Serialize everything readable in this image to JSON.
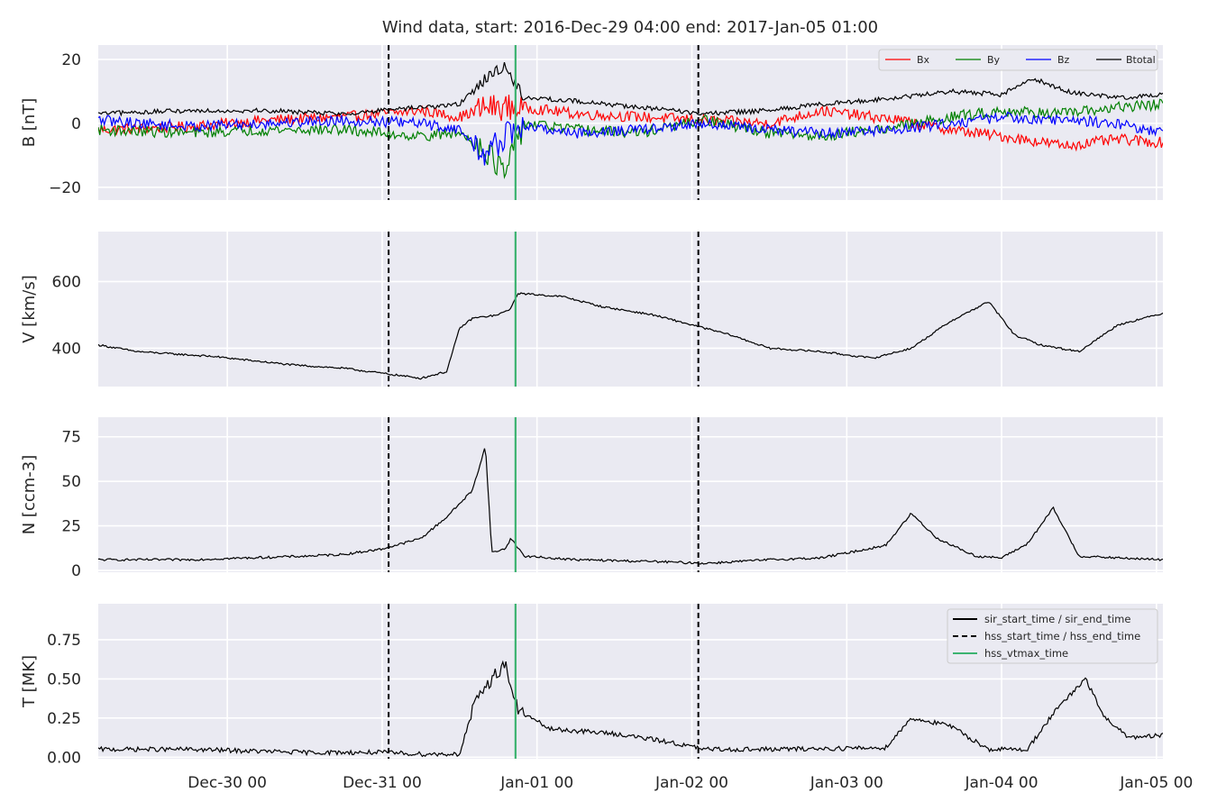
{
  "chart_data": {
    "type": "line",
    "title": "Wind data, start: 2016-Dec-29 04:00  end: 2017-Jan-05 01:00",
    "x_range": [
      "2016-12-29 04:00",
      "2017-01-05 01:00"
    ],
    "x_ticks": [
      {
        "label": "Dec-30 00",
        "t": "2016-12-30 00:00"
      },
      {
        "label": "Dec-31 00",
        "t": "2016-12-31 00:00"
      },
      {
        "label": "Jan-01 00",
        "t": "2017-01-01 00:00"
      },
      {
        "label": "Jan-02 00",
        "t": "2017-01-02 00:00"
      },
      {
        "label": "Jan-03 00",
        "t": "2017-01-03 00:00"
      },
      {
        "label": "Jan-04 00",
        "t": "2017-01-04 00:00"
      },
      {
        "label": "Jan-05 00",
        "t": "2017-01-05 00:00"
      }
    ],
    "grid": true,
    "markers": [
      {
        "name": "sir_start_time / sir_end_time",
        "style": "solid",
        "color": "#000000",
        "times": []
      },
      {
        "name": "hss_start_time / hss_end_time",
        "style": "dashed",
        "color": "#000000",
        "times": [
          "2016-12-31 01:00",
          "2017-01-02 01:00"
        ]
      },
      {
        "name": "hss_vtmax_time",
        "style": "solid",
        "color": "#3cb371",
        "times": [
          "2016-12-31 20:40"
        ]
      }
    ],
    "panels": [
      {
        "ylabel": "B [nT]",
        "ylim": [
          -24,
          24.5
        ],
        "yticks": [
          -20,
          0,
          20
        ],
        "legend": "top-right",
        "series": [
          {
            "name": "Bx",
            "color": "#ff0000",
            "points": [
              [
                "2016-12-29 04:00",
                -2
              ],
              [
                "2016-12-29 18:00",
                -1
              ],
              [
                "2016-12-30 06:00",
                1
              ],
              [
                "2016-12-30 18:00",
                2
              ],
              [
                "2016-12-31 06:00",
                4
              ],
              [
                "2016-12-31 12:00",
                2
              ],
              [
                "2016-12-31 16:00",
                5
              ],
              [
                "2016-12-31 22:00",
                5
              ],
              [
                "2017-01-01 06:00",
                3
              ],
              [
                "2017-01-01 16:00",
                2
              ],
              [
                "2017-01-02 02:00",
                1
              ],
              [
                "2017-01-02 12:00",
                0
              ],
              [
                "2017-01-02 20:00",
                4
              ],
              [
                "2017-01-03 08:00",
                1
              ],
              [
                "2017-01-03 16:00",
                -2
              ],
              [
                "2017-01-04 00:00",
                -4
              ],
              [
                "2017-01-04 10:00",
                -7
              ],
              [
                "2017-01-04 18:00",
                -5
              ],
              [
                "2017-01-05 01:00",
                -6
              ]
            ]
          },
          {
            "name": "By",
            "color": "#008000",
            "points": [
              [
                "2016-12-29 04:00",
                -2
              ],
              [
                "2016-12-29 18:00",
                -3
              ],
              [
                "2016-12-30 06:00",
                -2
              ],
              [
                "2016-12-30 18:00",
                -2
              ],
              [
                "2016-12-31 06:00",
                -4
              ],
              [
                "2016-12-31 12:00",
                -3
              ],
              [
                "2016-12-31 16:00",
                -8
              ],
              [
                "2016-12-31 19:00",
                -16
              ],
              [
                "2016-12-31 22:00",
                0
              ],
              [
                "2017-01-01 06:00",
                -2
              ],
              [
                "2017-01-01 16:00",
                -3
              ],
              [
                "2017-01-02 02:00",
                1
              ],
              [
                "2017-01-02 12:00",
                -3
              ],
              [
                "2017-01-02 20:00",
                -4
              ],
              [
                "2017-01-03 08:00",
                -1
              ],
              [
                "2017-01-03 16:00",
                2
              ],
              [
                "2017-01-04 00:00",
                4
              ],
              [
                "2017-01-04 10:00",
                3
              ],
              [
                "2017-01-04 18:00",
                5
              ],
              [
                "2017-01-05 01:00",
                6
              ]
            ]
          },
          {
            "name": "Bz",
            "color": "#0000ff",
            "points": [
              [
                "2016-12-29 04:00",
                1
              ],
              [
                "2016-12-29 18:00",
                -1
              ],
              [
                "2016-12-30 06:00",
                0
              ],
              [
                "2016-12-30 18:00",
                1
              ],
              [
                "2016-12-31 06:00",
                0
              ],
              [
                "2016-12-31 12:00",
                -2
              ],
              [
                "2016-12-31 16:00",
                -10
              ],
              [
                "2016-12-31 19:00",
                -4
              ],
              [
                "2016-12-31 22:00",
                -1
              ],
              [
                "2017-01-01 06:00",
                -3
              ],
              [
                "2017-01-01 16:00",
                -2
              ],
              [
                "2017-01-02 02:00",
                0
              ],
              [
                "2017-01-02 12:00",
                -2
              ],
              [
                "2017-01-02 20:00",
                -3
              ],
              [
                "2017-01-03 08:00",
                -2
              ],
              [
                "2017-01-03 16:00",
                0
              ],
              [
                "2017-01-04 00:00",
                2
              ],
              [
                "2017-01-04 10:00",
                1
              ],
              [
                "2017-01-04 18:00",
                0
              ],
              [
                "2017-01-05 01:00",
                -3
              ]
            ]
          },
          {
            "name": "Btotal",
            "color": "#000000",
            "points": [
              [
                "2016-12-29 04:00",
                3
              ],
              [
                "2016-12-29 18:00",
                4
              ],
              [
                "2016-12-30 06:00",
                4
              ],
              [
                "2016-12-30 18:00",
                3
              ],
              [
                "2016-12-31 06:00",
                5
              ],
              [
                "2016-12-31 12:00",
                6
              ],
              [
                "2016-12-31 16:00",
                14
              ],
              [
                "2016-12-31 19:00",
                18
              ],
              [
                "2016-12-31 22:00",
                8
              ],
              [
                "2017-01-01 06:00",
                7
              ],
              [
                "2017-01-01 16:00",
                5
              ],
              [
                "2017-01-02 02:00",
                3
              ],
              [
                "2017-01-02 12:00",
                4
              ],
              [
                "2017-01-02 20:00",
                6
              ],
              [
                "2017-01-03 08:00",
                8
              ],
              [
                "2017-01-03 16:00",
                10
              ],
              [
                "2017-01-04 00:00",
                9
              ],
              [
                "2017-01-04 05:00",
                14
              ],
              [
                "2017-01-04 10:00",
                10
              ],
              [
                "2017-01-04 18:00",
                8
              ],
              [
                "2017-01-05 01:00",
                9
              ]
            ]
          }
        ]
      },
      {
        "ylabel": "V [km/s]",
        "ylim": [
          285,
          750
        ],
        "yticks": [
          400,
          600
        ],
        "series": [
          {
            "name": "V",
            "color": "#000000",
            "points": [
              [
                "2016-12-29 04:00",
                410
              ],
              [
                "2016-12-29 10:00",
                390
              ],
              [
                "2016-12-29 22:00",
                375
              ],
              [
                "2016-12-30 10:00",
                350
              ],
              [
                "2016-12-30 18:00",
                340
              ],
              [
                "2016-12-31 00:00",
                325
              ],
              [
                "2016-12-31 06:00",
                310
              ],
              [
                "2016-12-31 10:00",
                330
              ],
              [
                "2016-12-31 12:00",
                460
              ],
              [
                "2016-12-31 14:00",
                490
              ],
              [
                "2016-12-31 18:00",
                500
              ],
              [
                "2016-12-31 20:00",
                520
              ],
              [
                "2016-12-31 21:00",
                565
              ],
              [
                "2017-01-01 04:00",
                555
              ],
              [
                "2017-01-01 10:00",
                525
              ],
              [
                "2017-01-01 18:00",
                500
              ],
              [
                "2017-01-02 00:00",
                470
              ],
              [
                "2017-01-02 06:00",
                440
              ],
              [
                "2017-01-02 12:00",
                400
              ],
              [
                "2017-01-02 20:00",
                390
              ],
              [
                "2017-01-03 04:00",
                370
              ],
              [
                "2017-01-03 10:00",
                400
              ],
              [
                "2017-01-03 16:00",
                480
              ],
              [
                "2017-01-03 22:00",
                540
              ],
              [
                "2017-01-04 02:00",
                440
              ],
              [
                "2017-01-04 06:00",
                410
              ],
              [
                "2017-01-04 12:00",
                390
              ],
              [
                "2017-01-04 18:00",
                470
              ],
              [
                "2017-01-05 01:00",
                505
              ]
            ]
          }
        ]
      },
      {
        "ylabel": "N [ccm-3]",
        "ylim": [
          -1,
          86
        ],
        "yticks": [
          0,
          25,
          50,
          75
        ],
        "series": [
          {
            "name": "N",
            "color": "#000000",
            "points": [
              [
                "2016-12-29 04:00",
                6
              ],
              [
                "2016-12-29 18:00",
                6
              ],
              [
                "2016-12-30 12:00",
                8
              ],
              [
                "2016-12-30 18:00",
                9
              ],
              [
                "2016-12-31 00:00",
                12
              ],
              [
                "2016-12-31 06:00",
                18
              ],
              [
                "2016-12-31 10:00",
                30
              ],
              [
                "2016-12-31 14:00",
                45
              ],
              [
                "2016-12-31 16:00",
                70
              ],
              [
                "2016-12-31 17:00",
                10
              ],
              [
                "2016-12-31 19:00",
                12
              ],
              [
                "2016-12-31 20:00",
                18
              ],
              [
                "2016-12-31 22:00",
                8
              ],
              [
                "2017-01-01 06:00",
                6
              ],
              [
                "2017-01-01 18:00",
                5
              ],
              [
                "2017-01-02 02:00",
                4
              ],
              [
                "2017-01-02 12:00",
                6
              ],
              [
                "2017-01-02 20:00",
                7
              ],
              [
                "2017-01-03 06:00",
                14
              ],
              [
                "2017-01-03 10:00",
                32
              ],
              [
                "2017-01-03 14:00",
                18
              ],
              [
                "2017-01-03 20:00",
                8
              ],
              [
                "2017-01-04 00:00",
                7
              ],
              [
                "2017-01-04 04:00",
                15
              ],
              [
                "2017-01-04 08:00",
                35
              ],
              [
                "2017-01-04 12:00",
                8
              ],
              [
                "2017-01-04 18:00",
                7
              ],
              [
                "2017-01-05 01:00",
                6
              ]
            ]
          }
        ]
      },
      {
        "ylabel": "T [MK]",
        "ylim": [
          -0.01,
          0.98
        ],
        "yticks": [
          0.0,
          0.25,
          0.5,
          0.75
        ],
        "legend": "top-right",
        "series": [
          {
            "name": "T",
            "color": "#000000",
            "points": [
              [
                "2016-12-29 04:00",
                0.05
              ],
              [
                "2016-12-29 18:00",
                0.05
              ],
              [
                "2016-12-30 12:00",
                0.03
              ],
              [
                "2016-12-31 00:00",
                0.03
              ],
              [
                "2016-12-31 06:00",
                0.02
              ],
              [
                "2016-12-31 12:00",
                0.02
              ],
              [
                "2016-12-31 14:00",
                0.3
              ],
              [
                "2016-12-31 16:00",
                0.45
              ],
              [
                "2016-12-31 19:00",
                0.6
              ],
              [
                "2016-12-31 21:00",
                0.3
              ],
              [
                "2017-01-01 02:00",
                0.18
              ],
              [
                "2017-01-01 12:00",
                0.15
              ],
              [
                "2017-01-01 20:00",
                0.1
              ],
              [
                "2017-01-02 02:00",
                0.05
              ],
              [
                "2017-01-02 12:00",
                0.05
              ],
              [
                "2017-01-03 06:00",
                0.06
              ],
              [
                "2017-01-03 10:00",
                0.25
              ],
              [
                "2017-01-03 16:00",
                0.2
              ],
              [
                "2017-01-03 22:00",
                0.05
              ],
              [
                "2017-01-04 04:00",
                0.05
              ],
              [
                "2017-01-04 08:00",
                0.28
              ],
              [
                "2017-01-04 13:00",
                0.5
              ],
              [
                "2017-01-04 16:00",
                0.25
              ],
              [
                "2017-01-04 20:00",
                0.12
              ],
              [
                "2017-01-05 01:00",
                0.14
              ]
            ]
          }
        ]
      }
    ]
  }
}
